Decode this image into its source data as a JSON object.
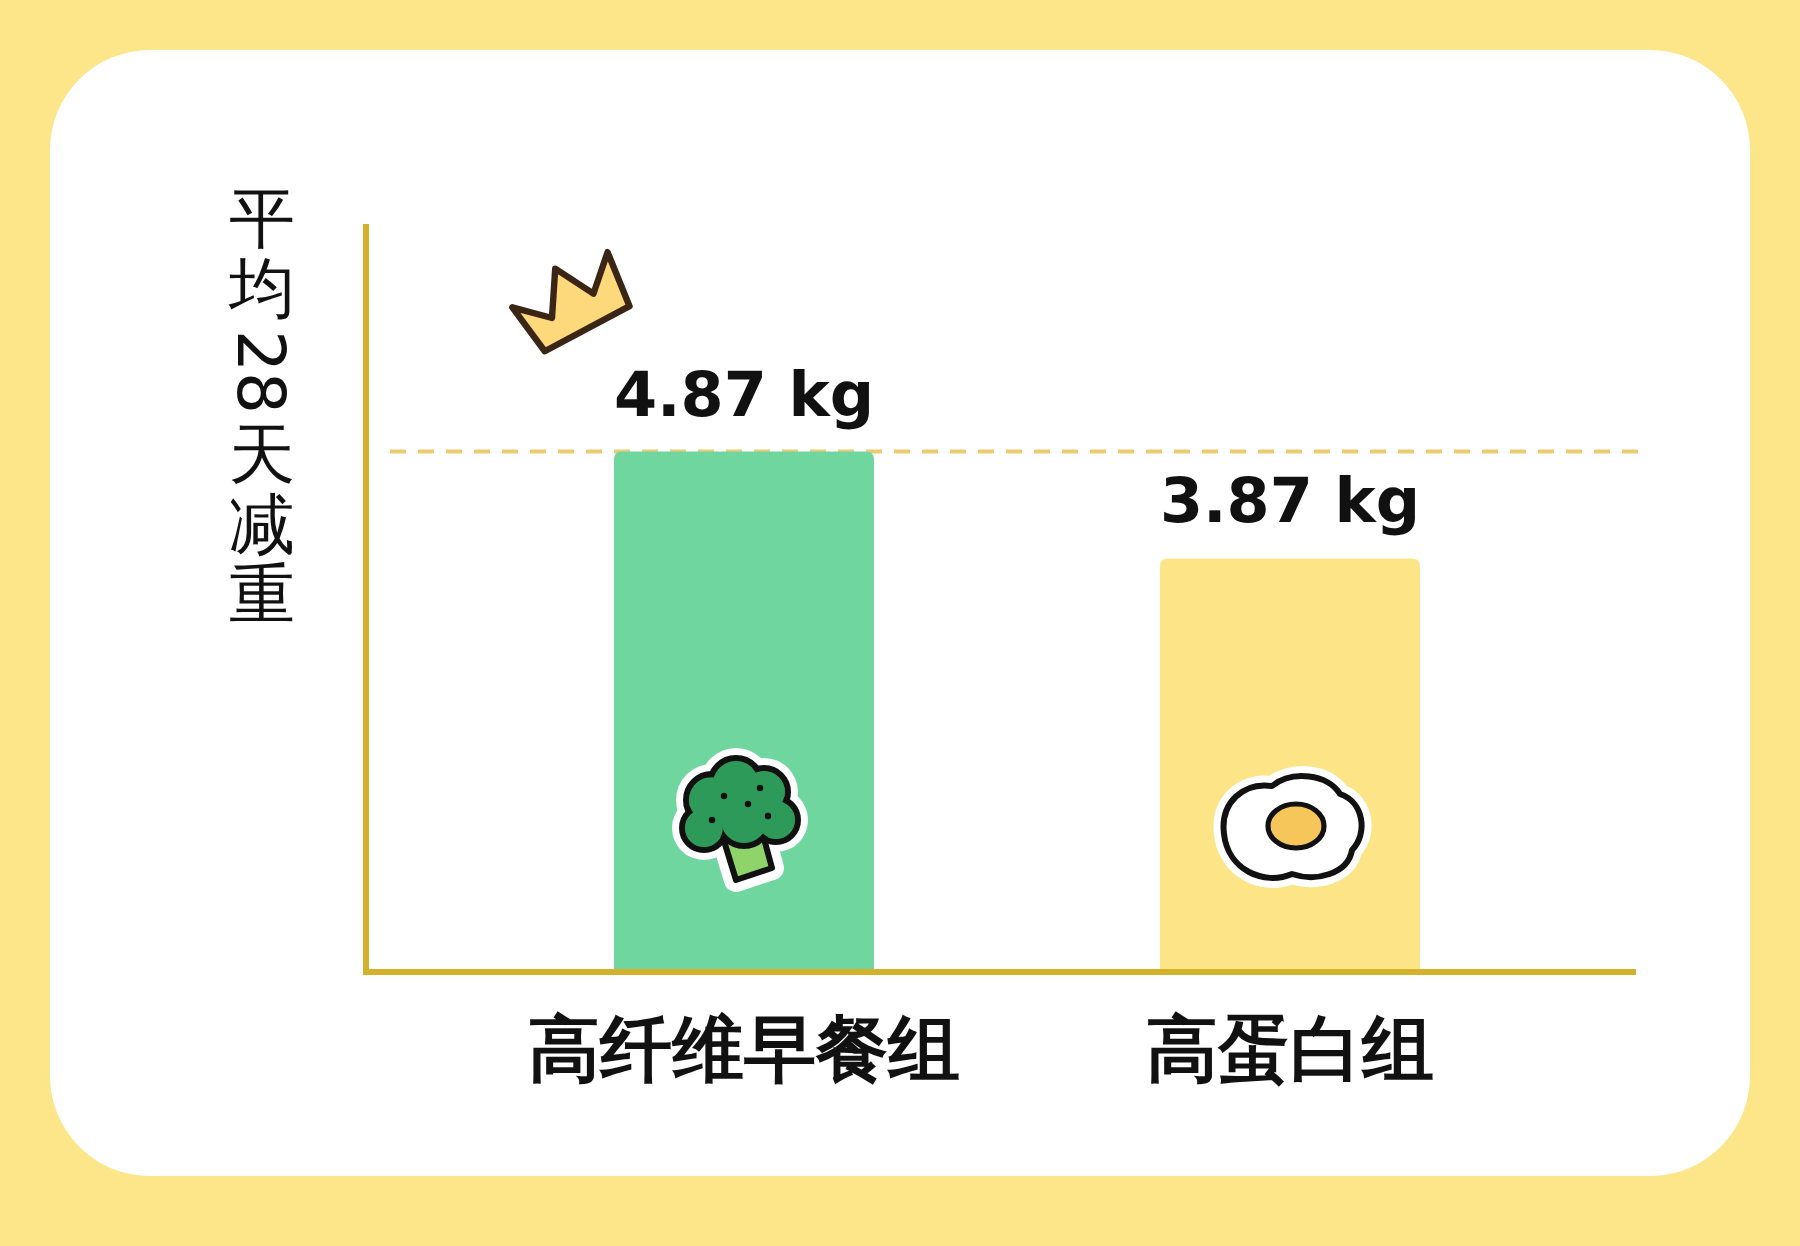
{
  "chart_data": {
    "type": "bar",
    "ylabel": "平均 28 天减重",
    "categories": [
      "高纤维早餐组",
      "高蛋白组"
    ],
    "values": [
      4.87,
      3.87
    ],
    "colors": [
      "#6fd69f",
      "#fde587"
    ],
    "value_labels": [
      "4.87 kg",
      "3.87 kg"
    ],
    "ylim": [
      0,
      7
    ],
    "tick_labels": "x",
    "ref_lines": [
      {
        "axis": "y",
        "value": 4.87,
        "color": "#ebcb70",
        "line_style": "dashed"
      }
    ]
  }
}
